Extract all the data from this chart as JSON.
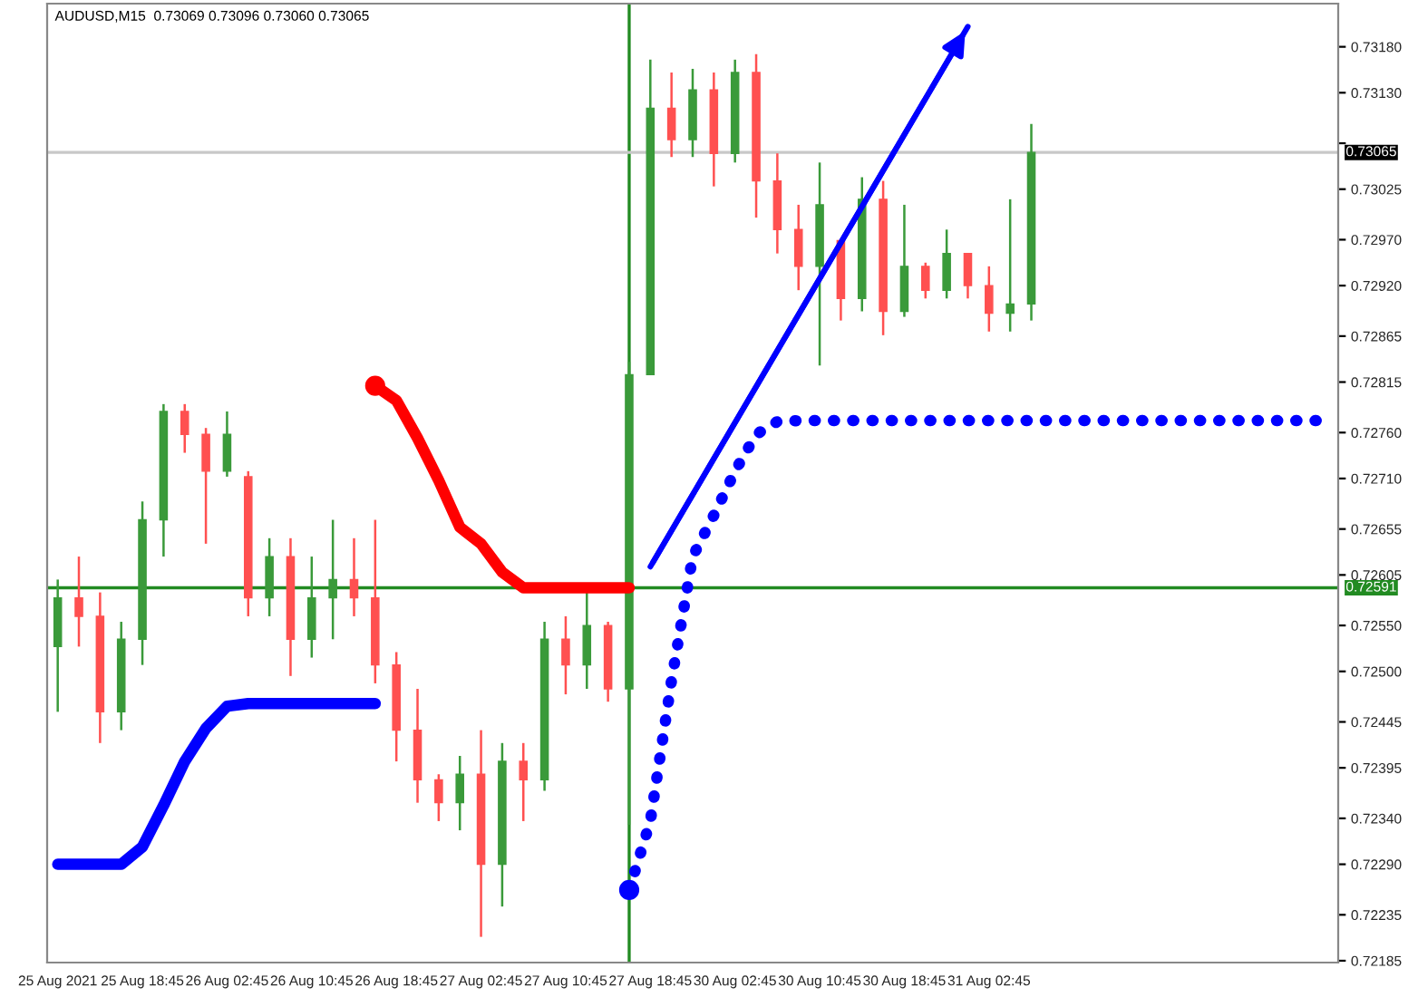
{
  "chart_data": {
    "type": "candlestick",
    "title": "AUDUSD,M15  0.73069 0.73096 0.73060 0.73065",
    "categories": [
      "25 Aug 2021",
      null,
      null,
      null,
      "25 Aug 18:45",
      null,
      null,
      null,
      "26 Aug 02:45",
      null,
      null,
      null,
      "26 Aug 10:45",
      null,
      null,
      null,
      "26 Aug 18:45",
      null,
      null,
      null,
      "27 Aug 02:45",
      null,
      null,
      null,
      "27 Aug 10:45",
      null,
      null,
      null,
      "27 Aug 18:45",
      null,
      null,
      null,
      "30 Aug 02:45",
      null,
      null,
      null,
      "30 Aug 10:45",
      null,
      null,
      null,
      "30 Aug 18:45",
      null,
      null,
      null,
      "31 Aug 02:45",
      null,
      null,
      null,
      null,
      null,
      null,
      null,
      null,
      null,
      null,
      null,
      null,
      null,
      null,
      null,
      null
    ],
    "ohlc": [
      [
        0.72527,
        0.726,
        0.72456,
        0.7258
      ],
      [
        0.7258,
        0.72625,
        0.72527,
        0.7256
      ],
      [
        0.7256,
        0.72586,
        0.72422,
        0.72456
      ],
      [
        0.72456,
        0.72554,
        0.72436,
        0.72535
      ],
      [
        0.72535,
        0.72685,
        0.72507,
        0.72665
      ],
      [
        0.72665,
        0.72791,
        0.72625,
        0.72783
      ],
      [
        0.72783,
        0.72791,
        0.72738,
        0.72758
      ],
      [
        0.72758,
        0.72765,
        0.72639,
        0.72718
      ],
      [
        0.72718,
        0.72783,
        0.72712,
        0.72758
      ],
      [
        0.72712,
        0.72718,
        0.7256,
        0.7258
      ],
      [
        0.7258,
        0.72645,
        0.7256,
        0.72625
      ],
      [
        0.72625,
        0.72645,
        0.72495,
        0.72535
      ],
      [
        0.72535,
        0.72625,
        0.72515,
        0.7258
      ],
      [
        0.7258,
        0.72665,
        0.72535,
        0.726
      ],
      [
        0.726,
        0.72645,
        0.7256,
        0.7258
      ],
      [
        0.7258,
        0.72665,
        0.72487,
        0.72507
      ],
      [
        0.72507,
        0.72521,
        0.72402,
        0.72436
      ],
      [
        0.72436,
        0.72481,
        0.72357,
        0.72382
      ],
      [
        0.72382,
        0.72388,
        0.72337,
        0.72357
      ],
      [
        0.72357,
        0.72408,
        0.72327,
        0.72388
      ],
      [
        0.72388,
        0.72436,
        0.72211,
        0.7229
      ],
      [
        0.7229,
        0.72422,
        0.72244,
        0.72402
      ],
      [
        0.72402,
        0.72422,
        0.72337,
        0.72382
      ],
      [
        0.72382,
        0.72554,
        0.7237,
        0.72535
      ],
      [
        0.72535,
        0.7256,
        0.72475,
        0.72507
      ],
      [
        0.72507,
        0.72586,
        0.72481,
        0.7255
      ],
      [
        0.7255,
        0.72554,
        0.72467,
        0.72481
      ],
      [
        0.72481,
        0.72837,
        0.72333,
        0.72823
      ],
      [
        0.72823,
        0.73166,
        0.72823,
        0.73113
      ],
      [
        0.73113,
        0.73152,
        0.7306,
        0.73079
      ],
      [
        0.73079,
        0.73156,
        0.7306,
        0.73133
      ],
      [
        0.73133,
        0.73152,
        0.73028,
        0.73064
      ],
      [
        0.73064,
        0.73166,
        0.73054,
        0.73152
      ],
      [
        0.73152,
        0.73172,
        0.72994,
        0.73034
      ],
      [
        0.73034,
        0.73064,
        0.72955,
        0.72981
      ],
      [
        0.72981,
        0.73008,
        0.72915,
        0.72941
      ],
      [
        0.72941,
        0.73054,
        0.72833,
        0.73008
      ],
      [
        0.72969,
        0.72969,
        0.72882,
        0.72906
      ],
      [
        0.72906,
        0.73038,
        0.72892,
        0.73014
      ],
      [
        0.73014,
        0.73034,
        0.72866,
        0.72892
      ],
      [
        0.72892,
        0.73008,
        0.72886,
        0.72941
      ],
      [
        0.72941,
        0.72945,
        0.72906,
        0.72915
      ],
      [
        0.72915,
        0.72981,
        0.72906,
        0.72955
      ],
      [
        0.72955,
        0.72955,
        0.72906,
        0.7292
      ],
      [
        0.7292,
        0.72941,
        0.7287,
        0.7289
      ],
      [
        0.7289,
        0.73014,
        0.7287,
        0.729
      ],
      [
        0.729,
        0.73096,
        0.72882,
        0.73065
      ],
      null,
      null,
      null,
      null,
      null,
      null,
      null,
      null,
      null,
      null,
      null,
      null,
      null,
      null
    ],
    "colors": [
      "#3a9a3a",
      "#ff5050",
      "#ff5050",
      "#3a9a3a",
      "#3a9a3a",
      "#3a9a3a",
      "#ff5050",
      "#ff5050",
      "#3a9a3a",
      "#ff5050",
      "#3a9a3a",
      "#ff5050",
      "#3a9a3a",
      "#3a9a3a",
      "#ff5050",
      "#ff5050",
      "#ff5050",
      "#ff5050",
      "#ff5050",
      "#3a9a3a",
      "#ff5050",
      "#3a9a3a",
      "#ff5050",
      "#3a9a3a",
      "#ff5050",
      "#3a9a3a",
      "#ff5050",
      "#3a9a3a",
      "#3a9a3a",
      "#ff5050",
      "#3a9a3a",
      "#ff5050",
      "#3a9a3a",
      "#ff5050",
      "#ff5050",
      "#ff5050",
      "#3a9a3a",
      "#ff5050",
      "#3a9a3a",
      "#ff5050",
      "#3a9a3a",
      "#ff5050",
      "#3a9a3a",
      "#ff5050",
      "#ff5050",
      "#3a9a3a",
      "#3a9a3a",
      null,
      null,
      null,
      null,
      null,
      null,
      null,
      null,
      null,
      null,
      null,
      null,
      null,
      null
    ],
    "series": [
      {
        "type": "line",
        "color": "#ff0000",
        "line_style": "solid",
        "values": [
          null,
          null,
          null,
          null,
          null,
          null,
          null,
          null,
          null,
          null,
          null,
          null,
          null,
          null,
          null,
          0.72811,
          0.72795,
          0.72754,
          0.72708,
          0.72657,
          0.72639,
          0.72608,
          0.72591,
          0.72591,
          0.72591,
          0.72591,
          0.72591,
          0.72591,
          null,
          null,
          null,
          null,
          null,
          null,
          null,
          null,
          null,
          null,
          null,
          null,
          null,
          null,
          null,
          null,
          null,
          null,
          null,
          null,
          null,
          null,
          null,
          null,
          null,
          null,
          null,
          null,
          null,
          null,
          null,
          null,
          null
        ]
      },
      {
        "type": "line",
        "color": "#0000ff",
        "line_style": "solid",
        "values": [
          0.7229,
          0.7229,
          0.7229,
          0.7229,
          0.72309,
          0.72354,
          0.72402,
          0.72438,
          0.72462,
          0.72465,
          0.72465,
          0.72465,
          0.72465,
          0.72465,
          0.72465,
          0.72465,
          null,
          null,
          null,
          null,
          null,
          null,
          null,
          null,
          null,
          null,
          null,
          null,
          null,
          null,
          null,
          null,
          null,
          null,
          null,
          null,
          null,
          null,
          null,
          null,
          null,
          null,
          null,
          null,
          null,
          null,
          null,
          null,
          null,
          null,
          null,
          null,
          null,
          null,
          null,
          null,
          null,
          null,
          null,
          null,
          null
        ]
      },
      {
        "type": "line",
        "color": "#0000ff",
        "line_style": "dotted",
        "values": [
          null,
          null,
          null,
          null,
          null,
          null,
          null,
          null,
          null,
          null,
          null,
          null,
          null,
          null,
          null,
          null,
          null,
          null,
          null,
          null,
          null,
          null,
          null,
          null,
          null,
          null,
          null,
          0.72262,
          0.72337,
          0.7249,
          0.72625,
          0.7267,
          0.72718,
          0.72758,
          0.72772,
          0.72773,
          0.72773,
          0.72773,
          0.72773,
          0.72773,
          0.72773,
          0.72773,
          0.72773,
          0.72773,
          0.72773,
          0.72773,
          0.72773,
          0.72773,
          0.72773,
          0.72773,
          0.72773,
          0.72773,
          0.72773,
          0.72773,
          0.72773,
          0.72773,
          0.72773,
          0.72773,
          0.72773,
          0.72773,
          0.72773
        ]
      },
      {
        "type": "line",
        "color": "#0000ff",
        "line_style": "solid",
        "values": [
          null,
          null,
          null,
          null,
          null,
          null,
          null,
          null,
          null,
          null,
          null,
          null,
          null,
          null,
          null,
          null,
          null,
          null,
          null,
          null,
          null,
          null,
          null,
          null,
          null,
          null,
          null,
          null,
          0.72614,
          null,
          null,
          null,
          null,
          null,
          null,
          null,
          null,
          null,
          null,
          null,
          null,
          null,
          null,
          0.73202,
          null,
          null,
          null,
          null,
          null,
          null,
          null,
          null,
          null,
          null,
          null,
          null,
          null,
          null,
          null,
          null,
          null
        ]
      }
    ],
    "ref_lines": [
      {
        "axis": "y",
        "value": 0.72591,
        "label": "0.72591",
        "color": "#228b22"
      },
      {
        "axis": "y",
        "value": 0.73065,
        "label": "0.73065",
        "color": "#c8c8c8"
      }
    ],
    "ylim": [
      0.72183,
      0.73227
    ],
    "yticks": [
      {
        "value": 0.7318,
        "label": "0.73180"
      },
      {
        "value": 0.7313,
        "label": "0.73130"
      },
      {
        "value": 0.73075,
        "label": null
      },
      {
        "value": 0.73025,
        "label": "0.73025"
      },
      {
        "value": 0.7297,
        "label": "0.72970"
      },
      {
        "value": 0.7292,
        "label": "0.72920"
      },
      {
        "value": 0.72865,
        "label": "0.72865"
      },
      {
        "value": 0.72815,
        "label": "0.72815"
      },
      {
        "value": 0.7276,
        "label": "0.72760"
      },
      {
        "value": 0.7271,
        "label": "0.72710"
      },
      {
        "value": 0.72655,
        "label": "0.72655"
      },
      {
        "value": 0.72605,
        "label": "0.72605"
      },
      {
        "value": 0.7255,
        "label": "0.72550"
      },
      {
        "value": 0.725,
        "label": "0.72500"
      },
      {
        "value": 0.72445,
        "label": "0.72445"
      },
      {
        "value": 0.72395,
        "label": "0.72395"
      },
      {
        "value": 0.7234,
        "label": "0.72340"
      },
      {
        "value": 0.7229,
        "label": "0.72290"
      },
      {
        "value": 0.72235,
        "label": "0.72235"
      },
      {
        "value": 0.72185,
        "label": "0.72185"
      }
    ],
    "grid": false,
    "legend": false
  }
}
